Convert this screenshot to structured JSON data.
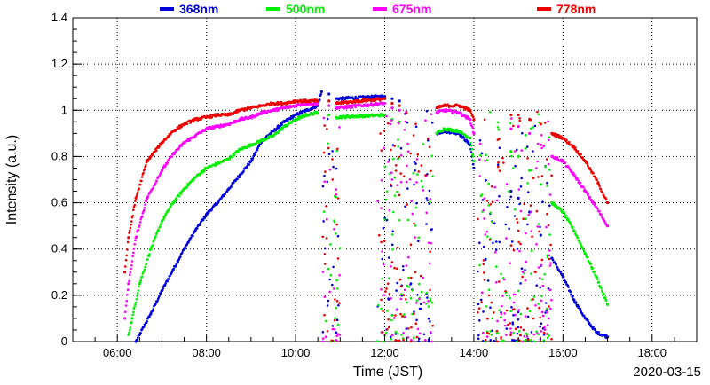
{
  "chart_data": {
    "type": "scatter",
    "xlabel": "Time (JST)",
    "ylabel": "Intensity (a.u.)",
    "date_label": "2020-03-15",
    "xlim": [
      "05:00",
      "19:00"
    ],
    "ylim": [
      0,
      1.4
    ],
    "x_ticks": [
      "06:00",
      "08:00",
      "10:00",
      "12:00",
      "14:00",
      "16:00",
      "18:00"
    ],
    "y_ticks": [
      "0",
      "0.2",
      "0.4",
      "0.6",
      "0.8",
      "1",
      "1.2",
      "1.4"
    ],
    "grid": true,
    "legend_position": "top",
    "series": [
      {
        "name": "368nm",
        "color": "#0000dd",
        "x": [
          "06:25",
          "06:30",
          "06:45",
          "07:00",
          "07:15",
          "07:30",
          "07:45",
          "08:00",
          "08:15",
          "08:30",
          "08:45",
          "09:00",
          "09:15",
          "09:30",
          "09:45",
          "10:00",
          "10:15",
          "10:30",
          "10:35",
          "10:45",
          "10:55",
          "12:00",
          "12:10",
          "12:20",
          "13:10",
          "13:20",
          "13:40",
          "13:55",
          "14:00",
          "14:50",
          "15:00",
          "15:15",
          "15:30",
          "15:45",
          "16:00",
          "16:15",
          "16:30",
          "16:45",
          "17:00"
        ],
        "values": [
          0.0,
          0.03,
          0.12,
          0.22,
          0.31,
          0.4,
          0.48,
          0.55,
          0.6,
          0.66,
          0.72,
          0.78,
          0.87,
          0.91,
          0.95,
          0.98,
          1.0,
          1.02,
          1.08,
          1.07,
          1.05,
          1.06,
          1.05,
          1.04,
          0.9,
          0.91,
          0.9,
          0.85,
          0.75,
          0.65,
          0.62,
          0.56,
          0.46,
          0.36,
          0.28,
          0.18,
          0.1,
          0.04,
          0.02
        ]
      },
      {
        "name": "500nm",
        "color": "#00ee00",
        "x": [
          "06:15",
          "06:20",
          "06:30",
          "06:45",
          "07:00",
          "07:15",
          "07:30",
          "07:45",
          "08:00",
          "08:15",
          "08:30",
          "08:45",
          "09:00",
          "09:15",
          "09:30",
          "09:45",
          "10:00",
          "10:15",
          "10:30",
          "10:45",
          "10:55",
          "12:00",
          "12:10",
          "12:20",
          "13:10",
          "13:20",
          "13:40",
          "13:55",
          "14:00",
          "14:50",
          "15:00",
          "15:15",
          "15:30",
          "15:45",
          "16:00",
          "16:15",
          "16:30",
          "16:45",
          "17:00"
        ],
        "values": [
          0.03,
          0.1,
          0.25,
          0.4,
          0.52,
          0.6,
          0.66,
          0.71,
          0.75,
          0.77,
          0.79,
          0.83,
          0.85,
          0.87,
          0.89,
          0.93,
          0.96,
          0.98,
          0.99,
          0.98,
          0.97,
          0.98,
          0.96,
          0.95,
          0.9,
          0.92,
          0.91,
          0.88,
          0.78,
          0.82,
          0.8,
          0.74,
          0.68,
          0.6,
          0.56,
          0.48,
          0.38,
          0.28,
          0.16
        ]
      },
      {
        "name": "675nm",
        "color": "#ff00ff",
        "x": [
          "06:10",
          "06:15",
          "06:25",
          "06:40",
          "07:00",
          "07:15",
          "07:30",
          "07:45",
          "08:00",
          "08:15",
          "08:30",
          "08:45",
          "09:00",
          "09:15",
          "09:30",
          "09:45",
          "10:00",
          "10:15",
          "10:30",
          "10:45",
          "10:55",
          "12:00",
          "12:10",
          "12:20",
          "13:10",
          "13:20",
          "13:40",
          "13:55",
          "14:00",
          "14:50",
          "15:00",
          "15:15",
          "15:30",
          "15:45",
          "16:00",
          "16:15",
          "16:30",
          "16:45",
          "17:00"
        ],
        "values": [
          0.1,
          0.25,
          0.45,
          0.62,
          0.74,
          0.81,
          0.86,
          0.89,
          0.92,
          0.93,
          0.94,
          0.96,
          0.97,
          0.99,
          1.0,
          1.01,
          1.02,
          1.03,
          1.03,
          1.02,
          1.01,
          1.03,
          1.01,
          1.0,
          0.99,
          1.0,
          0.99,
          0.96,
          0.9,
          0.92,
          0.93,
          0.9,
          0.85,
          0.8,
          0.78,
          0.72,
          0.65,
          0.58,
          0.5
        ]
      },
      {
        "name": "778nm",
        "color": "#ee0000",
        "x": [
          "06:10",
          "06:15",
          "06:25",
          "06:40",
          "07:00",
          "07:15",
          "07:30",
          "07:45",
          "08:00",
          "08:15",
          "08:30",
          "08:45",
          "09:00",
          "09:15",
          "09:30",
          "09:45",
          "10:00",
          "10:15",
          "10:30",
          "10:45",
          "10:55",
          "12:00",
          "12:10",
          "12:20",
          "13:10",
          "13:20",
          "13:40",
          "13:55",
          "14:00",
          "14:50",
          "15:00",
          "15:15",
          "15:30",
          "15:45",
          "16:00",
          "16:15",
          "16:30",
          "16:45",
          "17:00"
        ],
        "values": [
          0.3,
          0.45,
          0.62,
          0.78,
          0.86,
          0.91,
          0.94,
          0.96,
          0.97,
          0.98,
          0.98,
          1.0,
          1.01,
          1.02,
          1.03,
          1.03,
          1.04,
          1.04,
          1.04,
          1.04,
          1.03,
          1.05,
          1.03,
          1.02,
          1.01,
          1.02,
          1.02,
          1.0,
          0.96,
          0.98,
          0.98,
          0.96,
          0.94,
          0.9,
          0.88,
          0.84,
          0.78,
          0.7,
          0.6
        ]
      }
    ],
    "gap_intervals": [
      [
        "10:35",
        "11:00"
      ],
      [
        "11:50",
        "13:05"
      ],
      [
        "14:05",
        "15:45"
      ]
    ]
  }
}
